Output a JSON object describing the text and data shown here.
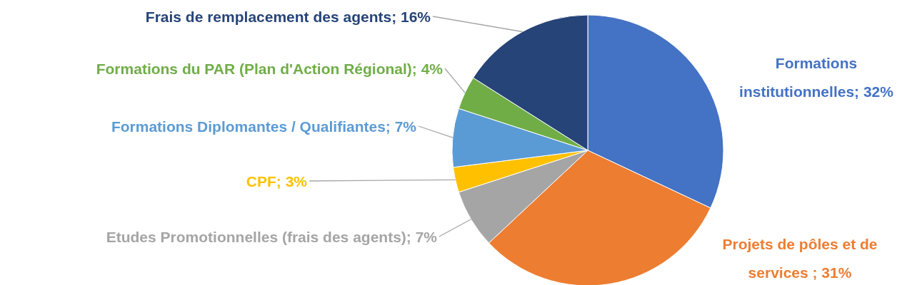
{
  "chart_data": {
    "type": "pie",
    "categories": [
      "Formations institutionnelles; 32%",
      "Projets de pôles et de services ; 31%",
      "Etudes Promotionnelles (frais des agents); 7%",
      "CPF; 3%",
      "Formations Diplomantes / Qualifiantes; 7%",
      "Formations du PAR (Plan d'Action Régional); 4%",
      "Frais de remplacement des agents; 16%"
    ],
    "values": [
      32,
      31,
      7,
      3,
      7,
      4,
      16
    ],
    "colors": [
      "#4472c4",
      "#ed7d31",
      "#a5a5a5",
      "#ffc000",
      "#5b9bd5",
      "#70ad47",
      "#264478"
    ]
  }
}
